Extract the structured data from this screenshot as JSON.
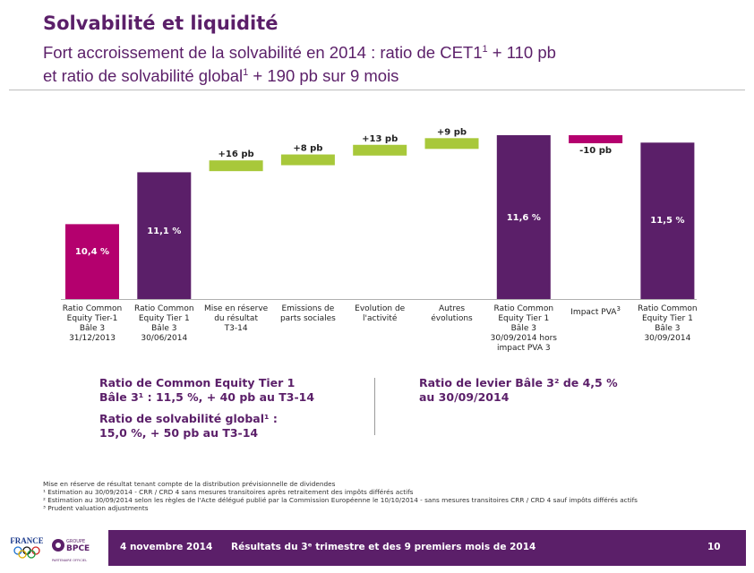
{
  "header": {
    "title": "Solvabilité et liquidité",
    "subtitle_line1_a": "Fort accroissement de la solvabilité en 2014 : ratio de CET1",
    "subtitle_line1_sup": "1",
    "subtitle_line1_b": " + 110 pb",
    "subtitle_line2_a": "et ratio de solvabilité global",
    "subtitle_line2_sup": "1",
    "subtitle_line2_b": " + 190 pb sur 9 mois"
  },
  "chart_data": {
    "type": "bar",
    "subtype": "waterfall",
    "unit": "%",
    "categories": [
      "Ratio Common Equity Tier-1 Bâle 3 31/12/2013",
      "Ratio Common Equity Tier 1 Bâle 3 30/06/2014",
      "Mise en réserve du résultat T3-14",
      "Emissions de parts sociales",
      "Evolution de l'activité",
      "Autres évolutions",
      "Ratio Common Equity Tier 1 Bâle 3 30/09/2014 hors impact PVA 3",
      "Impact PVA 3",
      "Ratio Common Equity Tier 1 Bâle 3 30/09/2014"
    ],
    "bars": [
      {
        "label": "10,4 %",
        "kind": "total",
        "start": 0,
        "end": 10.4,
        "color": "#b4006e"
      },
      {
        "label": "11,1 %",
        "kind": "total",
        "start": 0,
        "end": 11.1,
        "color": "#5b1f69"
      },
      {
        "label": "+16 pb",
        "kind": "step",
        "start": 11.1,
        "end": 11.26,
        "color": "#a8c83a"
      },
      {
        "label": "+8 pb",
        "kind": "step",
        "start": 11.26,
        "end": 11.34,
        "color": "#a8c83a"
      },
      {
        "label": "+13 pb",
        "kind": "step",
        "start": 11.34,
        "end": 11.47,
        "color": "#a8c83a"
      },
      {
        "label": "+9 pb",
        "kind": "step",
        "start": 11.47,
        "end": 11.56,
        "color": "#a8c83a"
      },
      {
        "label": "11,6 %",
        "kind": "total",
        "start": 0,
        "end": 11.6,
        "color": "#5b1f69"
      },
      {
        "label": "-10 pb",
        "kind": "step",
        "start": 11.6,
        "end": 11.5,
        "color": "#b4006e"
      },
      {
        "label": "11,5 %",
        "kind": "total",
        "start": 0,
        "end": 11.5,
        "color": "#5b1f69"
      }
    ],
    "category_lines": [
      [
        "Ratio Common",
        "Equity Tier-1",
        "Bâle 3",
        "31/12/2013"
      ],
      [
        "Ratio Common",
        "Equity Tier 1",
        "Bâle 3",
        "30/06/2014"
      ],
      [
        "Mise en réserve",
        "du résultat",
        "T3-14"
      ],
      [
        "Emissions de",
        "parts sociales"
      ],
      [
        "Evolution de",
        "l'activité"
      ],
      [
        "Autres évolutions"
      ],
      [
        "Ratio Common",
        "Equity Tier 1",
        "Bâle 3",
        "30/09/2014 hors",
        "impact PVA 3"
      ],
      [
        "Impact PVA",
        "3"
      ],
      [
        "Ratio Common",
        "Equity Tier 1",
        "Bâle 3",
        "30/09/2014"
      ]
    ],
    "grid": false,
    "legend": "none"
  },
  "kpis": {
    "cet1_line1": "Ratio de Common Equity Tier 1",
    "cet1_line2": "Bâle 3¹ :  11,5 %, + 40 pb au T3-14",
    "solv_line1": "Ratio de solvabilité global¹ :",
    "solv_line2": "15,0 %, + 50 pb au T3-14",
    "levier_line1": "Ratio de levier Bâle 3² de 4,5 %",
    "levier_line2": "au 30/09/2014"
  },
  "notes": [
    "Mise en réserve de résultat tenant compte de la distribution prévisionnelle de dividendes",
    "¹ Estimation au 30/09/2014  - CRR / CRD 4 sans mesures transitoires après retraitement des impôts différés actifs",
    "² Estimation au 30/09/2014 selon les règles de l'Acte délégué publié par la Commission Européenne le 10/10/2014 - sans mesures transitoires CRR / CRD 4 sauf impôts différés actifs",
    "³ Prudent valuation adjustments"
  ],
  "footer": {
    "date": "4 novembre 2014",
    "title": "Résultats du 3ᵉ trimestre et des 9 premiers mois de 2014",
    "page": "10",
    "logo_france": "FRANCE",
    "logo_groupe": "GROUPE",
    "logo_bpce": "BPCE",
    "logo_partner": "PARTENAIRE OFFICIEL"
  },
  "colors": {
    "purple": "#5b1f69",
    "magenta": "#b4006e",
    "green": "#a8c83a"
  }
}
